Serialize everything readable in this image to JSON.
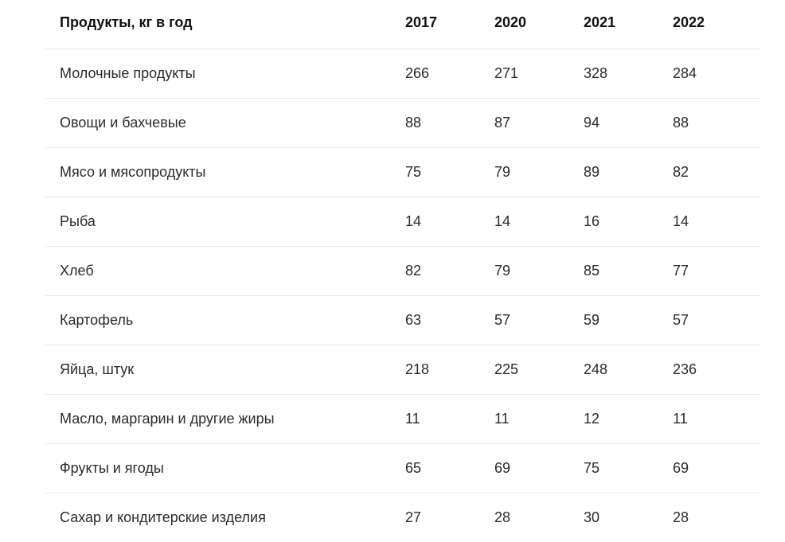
{
  "table": {
    "headers": [
      "Продукты, кг в год",
      "2017",
      "2020",
      "2021",
      "2022"
    ],
    "rows": [
      {
        "name": "Молочные продукты",
        "values": [
          "266",
          "271",
          "328",
          "284"
        ]
      },
      {
        "name": "Овощи и бахчевые",
        "values": [
          "88",
          "87",
          "94",
          "88"
        ]
      },
      {
        "name": "Мясо и мясопродукты",
        "values": [
          "75",
          "79",
          "89",
          "82"
        ]
      },
      {
        "name": "Рыба",
        "values": [
          "14",
          "14",
          "16",
          "14"
        ]
      },
      {
        "name": "Хлеб",
        "values": [
          "82",
          "79",
          "85",
          "77"
        ]
      },
      {
        "name": "Картофель",
        "values": [
          "63",
          "57",
          "59",
          "57"
        ]
      },
      {
        "name": "Яйца, штук",
        "values": [
          "218",
          "225",
          "248",
          "236"
        ]
      },
      {
        "name": "Масло, маргарин и другие жиры",
        "values": [
          "11",
          "11",
          "12",
          "11"
        ]
      },
      {
        "name": "Фрукты и ягоды",
        "values": [
          "65",
          "69",
          "75",
          "69"
        ]
      },
      {
        "name": "Сахар и кондитерские изделия",
        "values": [
          "27",
          "28",
          "30",
          "28"
        ]
      }
    ]
  }
}
